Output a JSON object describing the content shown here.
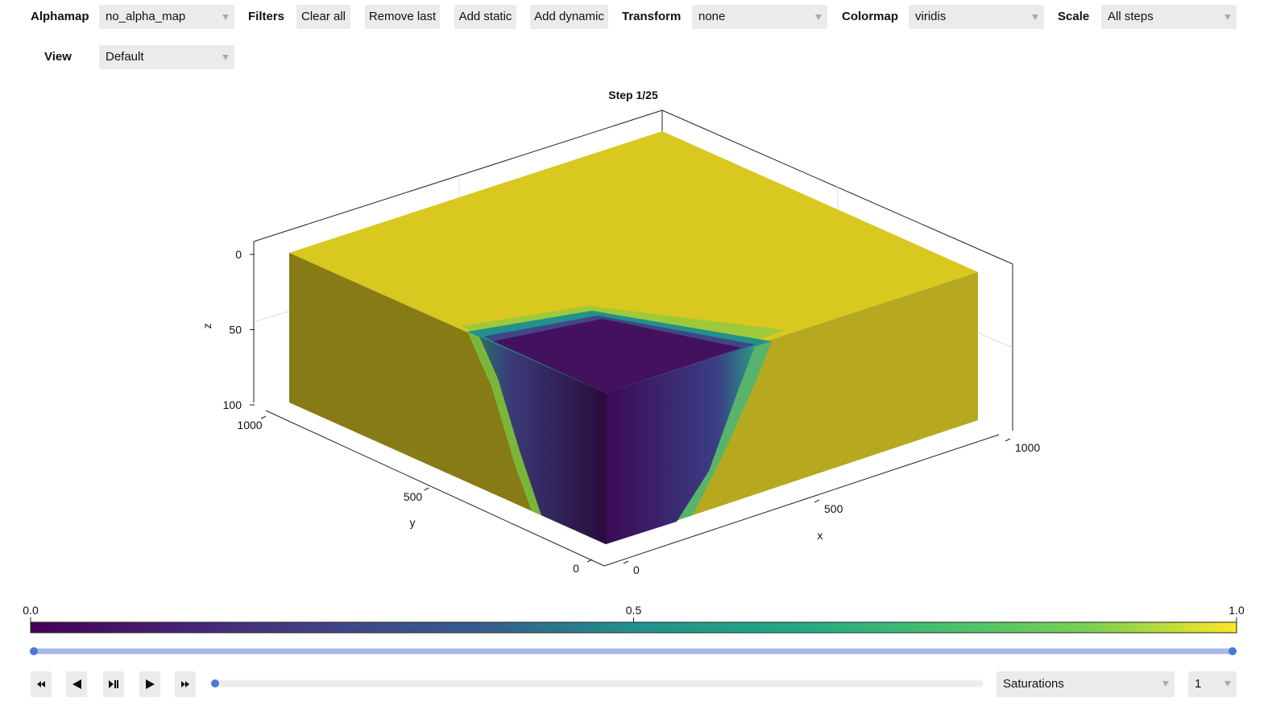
{
  "toolbar": {
    "alphamap": {
      "label": "Alphamap",
      "value": "no_alpha_map"
    },
    "filters": {
      "label": "Filters",
      "buttons": [
        "Clear all",
        "Remove last",
        "Add static",
        "Add dynamic"
      ]
    },
    "transform": {
      "label": "Transform",
      "value": "none"
    },
    "colormap": {
      "label": "Colormap",
      "value": "viridis"
    },
    "scale": {
      "label": "Scale",
      "value": "All steps"
    },
    "view": {
      "label": "View",
      "value": "Default"
    }
  },
  "plot": {
    "title": "Step 1/25",
    "axes": {
      "x": {
        "label": "x",
        "lim": [
          0,
          1000
        ],
        "ticks": [
          0,
          500,
          1000
        ]
      },
      "y": {
        "label": "y",
        "lim": [
          0,
          1000
        ],
        "ticks": [
          0,
          500,
          1000
        ]
      },
      "z": {
        "label": "z",
        "lim": [
          0,
          100
        ],
        "ticks": [
          0,
          50,
          100
        ]
      }
    }
  },
  "colorbar": {
    "lim": [
      0,
      1
    ],
    "ticks": [
      {
        "value": 0,
        "label": "0.0"
      },
      {
        "value": 0.5,
        "label": "0.5"
      },
      {
        "value": 1,
        "label": "1.0"
      }
    ]
  },
  "player": {
    "field": "Saturations",
    "component": 1
  }
}
